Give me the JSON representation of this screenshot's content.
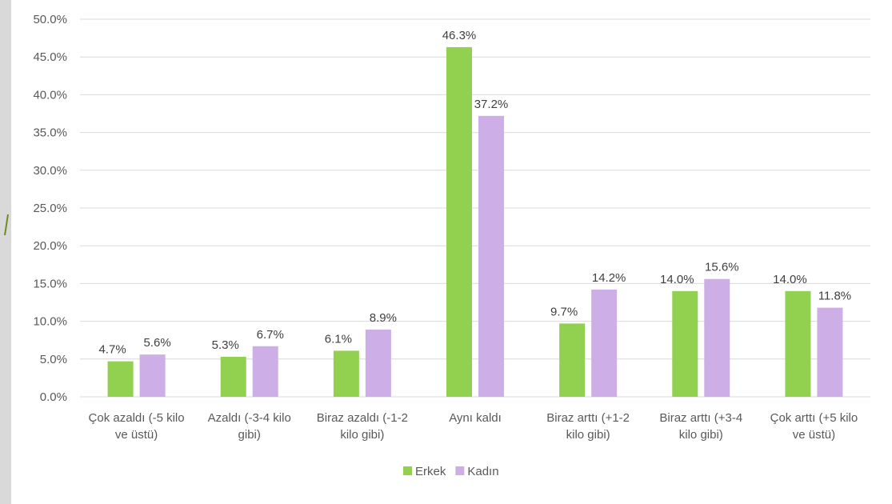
{
  "chart_data": {
    "type": "bar",
    "categories": [
      [
        "Çok azaldı (-5 kilo",
        "ve üstü)"
      ],
      [
        "Azaldı (-3-4 kilo",
        "gibi)"
      ],
      [
        "Biraz azaldı (-1-2",
        "kilo gibi)"
      ],
      [
        "Aynı kaldı"
      ],
      [
        "Biraz arttı (+1-2",
        "kilo gibi)"
      ],
      [
        "Biraz arttı (+3-4",
        "kilo gibi)"
      ],
      [
        "Çok arttı (+5 kilo",
        "ve üstü)"
      ]
    ],
    "series": [
      {
        "name": "Erkek",
        "color": "#92d050",
        "values": [
          4.7,
          5.3,
          6.1,
          46.3,
          9.7,
          14.0,
          14.0
        ],
        "labels": [
          "4.7%",
          "5.3%",
          "6.1%",
          "46.3%",
          "9.7%",
          "14.0%",
          "14.0%"
        ]
      },
      {
        "name": "Kadın",
        "color": "#cdaee6",
        "values": [
          5.6,
          6.7,
          8.9,
          37.2,
          14.2,
          15.6,
          11.8
        ],
        "labels": [
          "5.6%",
          "6.7%",
          "8.9%",
          "37.2%",
          "14.2%",
          "15.6%",
          "11.8%"
        ]
      }
    ],
    "yticks": [
      "0.0%",
      "5.0%",
      "10.0%",
      "15.0%",
      "20.0%",
      "25.0%",
      "30.0%",
      "35.0%",
      "40.0%",
      "45.0%",
      "50.0%"
    ],
    "ylim": [
      0,
      50
    ],
    "grid": true,
    "legend_position": "bottom",
    "title": "",
    "xlabel": "",
    "ylabel": ""
  },
  "decor": {
    "accent": "#6b8e23"
  }
}
